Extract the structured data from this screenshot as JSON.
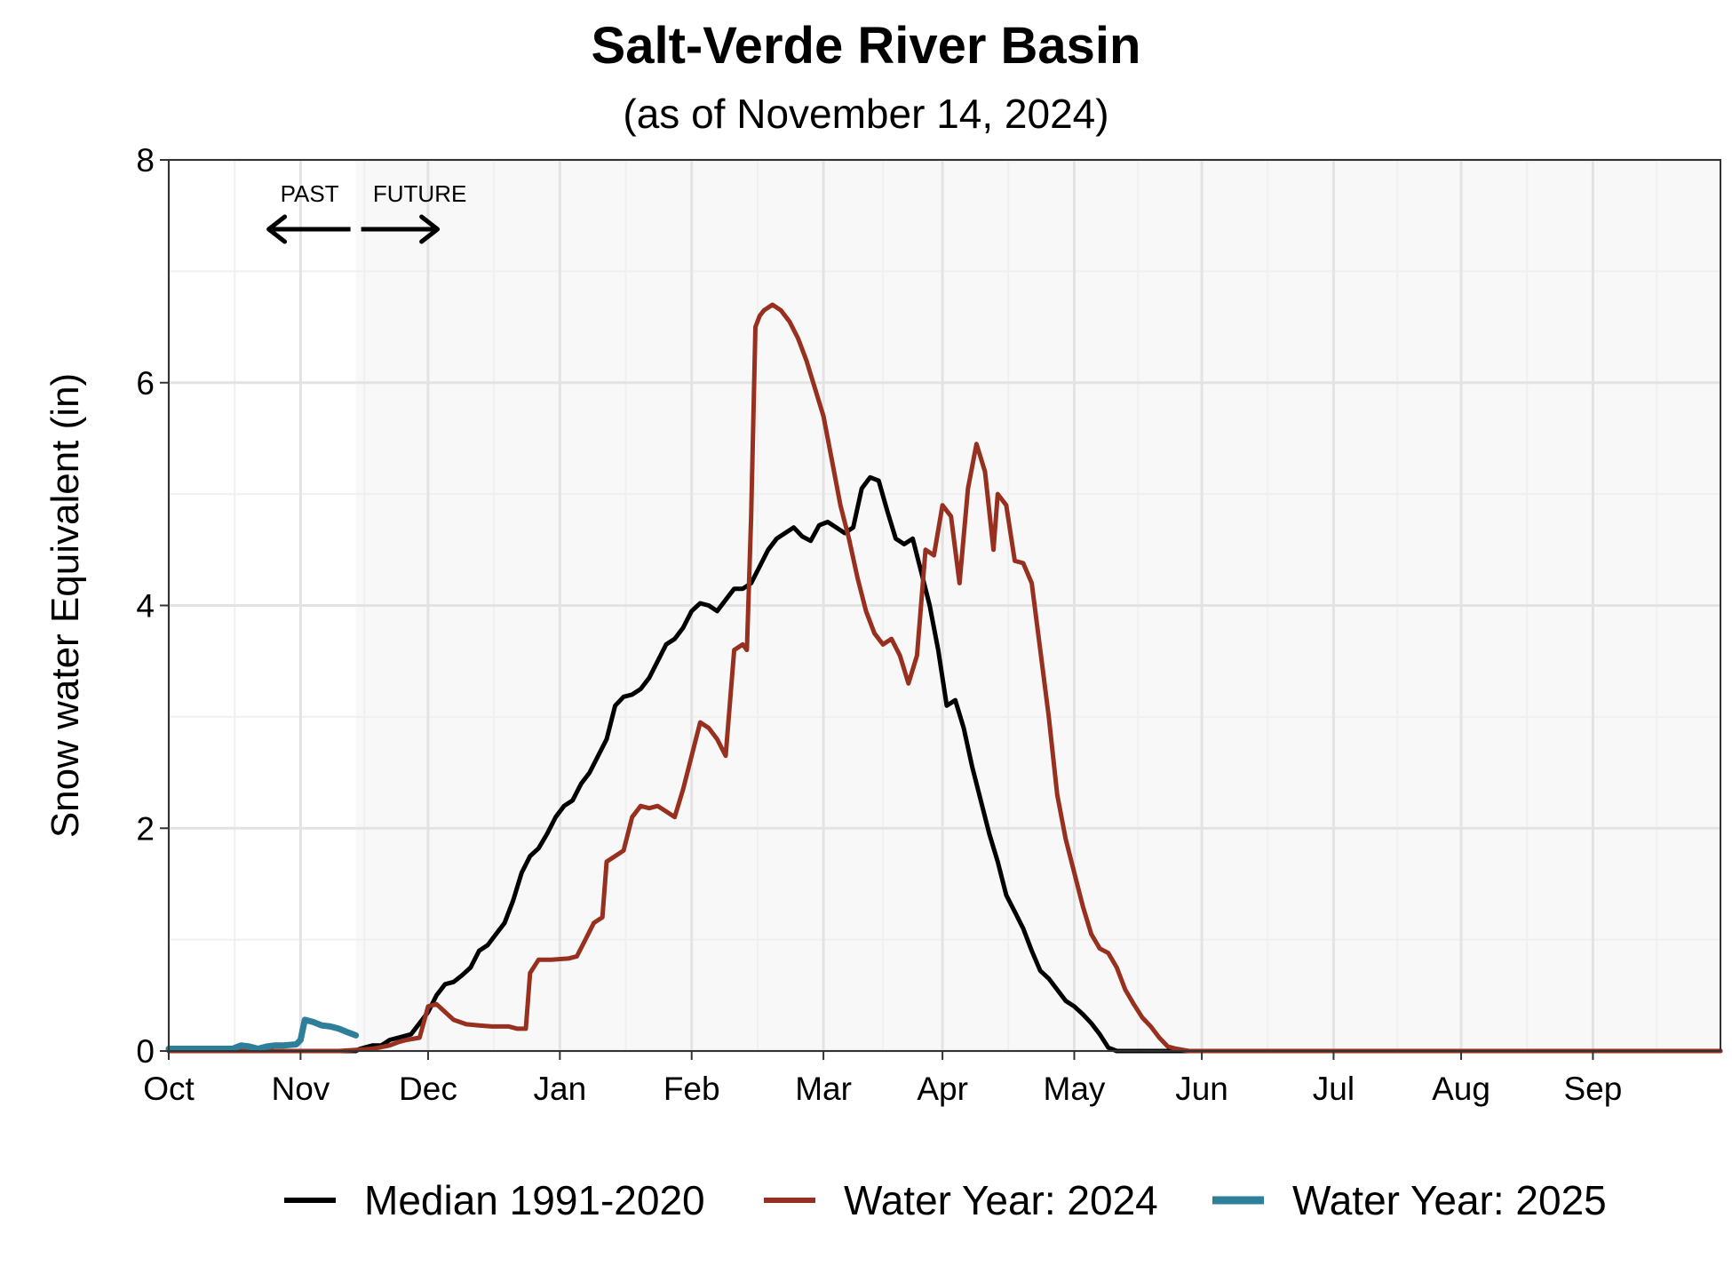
{
  "chart_data": {
    "type": "line",
    "title": "Salt-Verde River Basin",
    "subtitle": "(as of November 14, 2024)",
    "xlabel": "",
    "ylabel": "Snow water Equivalent (in)",
    "ylim": [
      0,
      8
    ],
    "y_ticks": [
      0,
      2,
      4,
      6,
      8
    ],
    "x_ticks": [
      "Oct",
      "Nov",
      "Dec",
      "Jan",
      "Feb",
      "Mar",
      "Apr",
      "May",
      "Jun",
      "Jul",
      "Aug",
      "Sep"
    ],
    "x_units": "day of water year (Oct 1 = 0)",
    "xlim": [
      0,
      365
    ],
    "current_day": 44,
    "grid": true,
    "legend_position": "bottom",
    "annotations": {
      "past": "PAST",
      "future": "FUTURE"
    },
    "colors": {
      "median": "#000000",
      "wy2024": "#97301f",
      "wy2025": "#2e7f99",
      "future_shade": "#f8f8f8",
      "grid": "#e3e3e3"
    },
    "series": [
      {
        "name": "Median 1991-2020",
        "color": "#000000",
        "points": [
          [
            0,
            0
          ],
          [
            40,
            0
          ],
          [
            44,
            0
          ],
          [
            45,
            0.02
          ],
          [
            48,
            0.05
          ],
          [
            50,
            0.05
          ],
          [
            52,
            0.1
          ],
          [
            54,
            0.12
          ],
          [
            57,
            0.15
          ],
          [
            59,
            0.25
          ],
          [
            61,
            0.35
          ],
          [
            63,
            0.5
          ],
          [
            65,
            0.6
          ],
          [
            67,
            0.62
          ],
          [
            69,
            0.68
          ],
          [
            71,
            0.75
          ],
          [
            73,
            0.9
          ],
          [
            75,
            0.95
          ],
          [
            77,
            1.05
          ],
          [
            79,
            1.15
          ],
          [
            81,
            1.35
          ],
          [
            83,
            1.6
          ],
          [
            85,
            1.75
          ],
          [
            87,
            1.82
          ],
          [
            89,
            1.95
          ],
          [
            91,
            2.1
          ],
          [
            93,
            2.2
          ],
          [
            95,
            2.25
          ],
          [
            97,
            2.4
          ],
          [
            99,
            2.5
          ],
          [
            101,
            2.65
          ],
          [
            103,
            2.8
          ],
          [
            105,
            3.1
          ],
          [
            107,
            3.18
          ],
          [
            109,
            3.2
          ],
          [
            111,
            3.25
          ],
          [
            113,
            3.35
          ],
          [
            115,
            3.5
          ],
          [
            117,
            3.65
          ],
          [
            119,
            3.7
          ],
          [
            121,
            3.8
          ],
          [
            123,
            3.95
          ],
          [
            125,
            4.02
          ],
          [
            127,
            4.0
          ],
          [
            129,
            3.95
          ],
          [
            131,
            4.05
          ],
          [
            133,
            4.15
          ],
          [
            135,
            4.15
          ],
          [
            137,
            4.2
          ],
          [
            139,
            4.35
          ],
          [
            141,
            4.5
          ],
          [
            143,
            4.6
          ],
          [
            145,
            4.65
          ],
          [
            147,
            4.7
          ],
          [
            149,
            4.62
          ],
          [
            151,
            4.58
          ],
          [
            153,
            4.72
          ],
          [
            155,
            4.75
          ],
          [
            157,
            4.7
          ],
          [
            159,
            4.65
          ],
          [
            161,
            4.7
          ],
          [
            163,
            5.05
          ],
          [
            165,
            5.15
          ],
          [
            167,
            5.12
          ],
          [
            169,
            4.85
          ],
          [
            171,
            4.6
          ],
          [
            173,
            4.55
          ],
          [
            175,
            4.6
          ],
          [
            177,
            4.3
          ],
          [
            179,
            4.0
          ],
          [
            181,
            3.6
          ],
          [
            183,
            3.1
          ],
          [
            185,
            3.15
          ],
          [
            187,
            2.9
          ],
          [
            189,
            2.55
          ],
          [
            191,
            2.25
          ],
          [
            193,
            1.95
          ],
          [
            195,
            1.7
          ],
          [
            197,
            1.4
          ],
          [
            199,
            1.25
          ],
          [
            201,
            1.1
          ],
          [
            203,
            0.9
          ],
          [
            205,
            0.72
          ],
          [
            207,
            0.65
          ],
          [
            209,
            0.55
          ],
          [
            211,
            0.45
          ],
          [
            213,
            0.4
          ],
          [
            215,
            0.33
          ],
          [
            217,
            0.25
          ],
          [
            219,
            0.15
          ],
          [
            221,
            0.03
          ],
          [
            223,
            0
          ],
          [
            365,
            0
          ]
        ]
      },
      {
        "name": "Water Year: 2024",
        "color": "#97301f",
        "points": [
          [
            0,
            0
          ],
          [
            40,
            0
          ],
          [
            48,
            0.02
          ],
          [
            52,
            0.05
          ],
          [
            54,
            0.08
          ],
          [
            56,
            0.1
          ],
          [
            59,
            0.12
          ],
          [
            61,
            0.4
          ],
          [
            63,
            0.42
          ],
          [
            65,
            0.35
          ],
          [
            67,
            0.28
          ],
          [
            70,
            0.24
          ],
          [
            73,
            0.23
          ],
          [
            76,
            0.22
          ],
          [
            80,
            0.22
          ],
          [
            82,
            0.2
          ],
          [
            84,
            0.2
          ],
          [
            85,
            0.7
          ],
          [
            87,
            0.82
          ],
          [
            90,
            0.82
          ],
          [
            94,
            0.83
          ],
          [
            96,
            0.85
          ],
          [
            98,
            1.0
          ],
          [
            100,
            1.15
          ],
          [
            102,
            1.2
          ],
          [
            103,
            1.7
          ],
          [
            105,
            1.75
          ],
          [
            107,
            1.8
          ],
          [
            109,
            2.1
          ],
          [
            111,
            2.2
          ],
          [
            113,
            2.18
          ],
          [
            115,
            2.2
          ],
          [
            117,
            2.15
          ],
          [
            119,
            2.1
          ],
          [
            121,
            2.35
          ],
          [
            123,
            2.65
          ],
          [
            125,
            2.95
          ],
          [
            127,
            2.9
          ],
          [
            129,
            2.8
          ],
          [
            131,
            2.65
          ],
          [
            133,
            3.6
          ],
          [
            135,
            3.65
          ],
          [
            136,
            3.6
          ],
          [
            137,
            4.8
          ],
          [
            138,
            6.5
          ],
          [
            139,
            6.6
          ],
          [
            140,
            6.65
          ],
          [
            142,
            6.7
          ],
          [
            144,
            6.65
          ],
          [
            146,
            6.55
          ],
          [
            148,
            6.4
          ],
          [
            150,
            6.2
          ],
          [
            152,
            5.95
          ],
          [
            154,
            5.7
          ],
          [
            156,
            5.3
          ],
          [
            158,
            4.9
          ],
          [
            160,
            4.6
          ],
          [
            162,
            4.25
          ],
          [
            164,
            3.95
          ],
          [
            166,
            3.75
          ],
          [
            168,
            3.65
          ],
          [
            170,
            3.7
          ],
          [
            172,
            3.55
          ],
          [
            174,
            3.3
          ],
          [
            176,
            3.55
          ],
          [
            178,
            4.5
          ],
          [
            180,
            4.45
          ],
          [
            182,
            4.9
          ],
          [
            184,
            4.8
          ],
          [
            186,
            4.2
          ],
          [
            188,
            5.05
          ],
          [
            190,
            5.45
          ],
          [
            192,
            5.2
          ],
          [
            194,
            4.5
          ],
          [
            195,
            5.0
          ],
          [
            197,
            4.9
          ],
          [
            199,
            4.4
          ],
          [
            201,
            4.38
          ],
          [
            203,
            4.2
          ],
          [
            205,
            3.6
          ],
          [
            207,
            3.0
          ],
          [
            209,
            2.3
          ],
          [
            211,
            1.9
          ],
          [
            213,
            1.6
          ],
          [
            215,
            1.3
          ],
          [
            217,
            1.05
          ],
          [
            219,
            0.92
          ],
          [
            221,
            0.88
          ],
          [
            223,
            0.75
          ],
          [
            225,
            0.55
          ],
          [
            227,
            0.42
          ],
          [
            229,
            0.3
          ],
          [
            231,
            0.22
          ],
          [
            233,
            0.12
          ],
          [
            235,
            0.04
          ],
          [
            237,
            0.02
          ],
          [
            240,
            0
          ],
          [
            365,
            0
          ]
        ]
      },
      {
        "name": "Water Year: 2025",
        "color": "#2e7f99",
        "points": [
          [
            0,
            0.02
          ],
          [
            10,
            0.02
          ],
          [
            15,
            0.02
          ],
          [
            17,
            0.05
          ],
          [
            19,
            0.04
          ],
          [
            21,
            0.02
          ],
          [
            23,
            0.04
          ],
          [
            25,
            0.05
          ],
          [
            27,
            0.05
          ],
          [
            30,
            0.06
          ],
          [
            31,
            0.1
          ],
          [
            32,
            0.28
          ],
          [
            34,
            0.26
          ],
          [
            36,
            0.23
          ],
          [
            38,
            0.22
          ],
          [
            40,
            0.2
          ],
          [
            42,
            0.17
          ],
          [
            44,
            0.14
          ]
        ]
      }
    ]
  }
}
